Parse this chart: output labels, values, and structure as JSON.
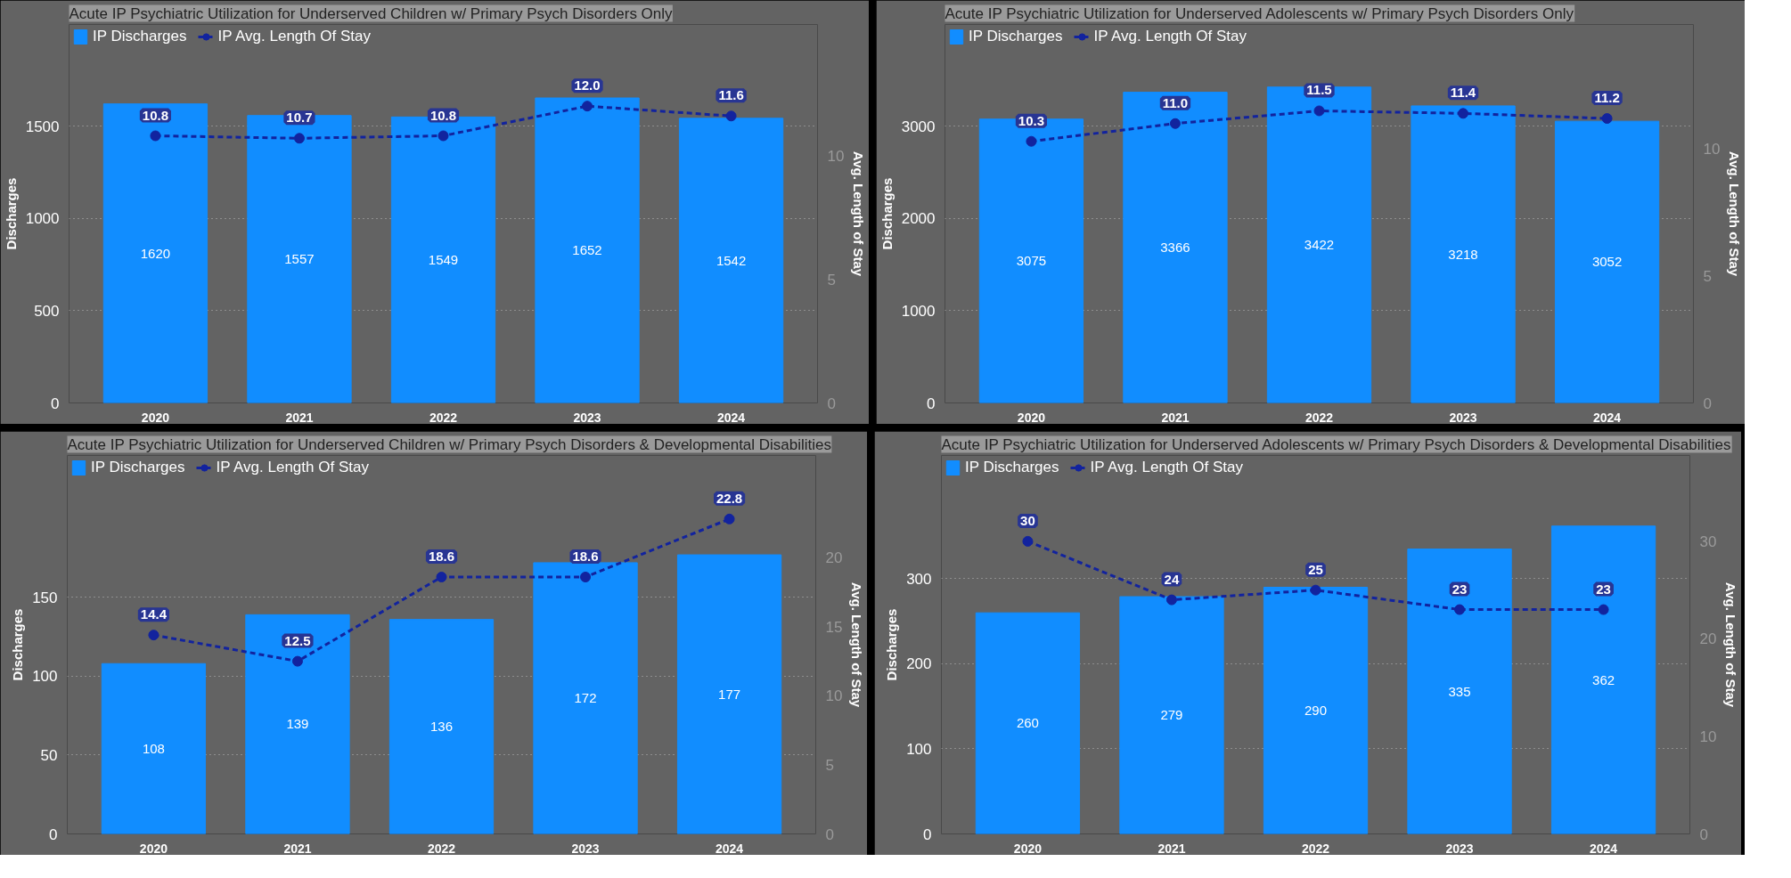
{
  "chart_data": [
    {
      "type": "bar",
      "title": "Acute IP Psychiatric Utilization for Underserved Children w/ Primary Psych Disorders Only",
      "ylabel": "Discharges",
      "y2label": "Avg. Length of Stay",
      "categories": [
        "2020",
        "2021",
        "2022",
        "2023",
        "2024"
      ],
      "series": [
        {
          "name": "IP Discharges",
          "type": "bar",
          "color": "#118dff",
          "values": [
            1620,
            1557,
            1549,
            1652,
            1542
          ]
        },
        {
          "name": "IP Avg. Length Of Stay",
          "type": "line",
          "axis": "y2",
          "color": "#12239e",
          "line_style": "dashed",
          "marker": "circle",
          "values": [
            10.8,
            10.7,
            10.8,
            12.0,
            11.6
          ],
          "value_labels": [
            "10.8",
            "10.7",
            "10.8",
            "12.0",
            "11.6"
          ]
        }
      ],
      "ylim": [
        0,
        2050
      ],
      "yticks": [
        0,
        500,
        1000,
        1500
      ],
      "y2lim": [
        0,
        15.3
      ],
      "y2ticks": [
        0,
        5,
        10
      ],
      "grid": "y",
      "legend": "top left",
      "data_labels": true
    },
    {
      "type": "bar",
      "title": "Acute IP Psychiatric Utilization for Underserved Adolescents w/ Primary Psych Disorders Only",
      "ylabel": "Discharges",
      "y2label": "Avg. Length of Stay",
      "categories": [
        "2020",
        "2021",
        "2022",
        "2023",
        "2024"
      ],
      "series": [
        {
          "name": "IP Discharges",
          "type": "bar",
          "color": "#118dff",
          "values": [
            3075,
            3366,
            3422,
            3218,
            3052
          ]
        },
        {
          "name": "IP Avg. Length Of Stay",
          "type": "line",
          "axis": "y2",
          "color": "#12239e",
          "line_style": "dashed",
          "marker": "circle",
          "values": [
            10.3,
            11.0,
            11.5,
            11.4,
            11.2
          ],
          "value_labels": [
            "10.3",
            "11.0",
            "11.5",
            "11.4",
            "11.2"
          ]
        }
      ],
      "ylim": [
        0,
        4100
      ],
      "yticks": [
        0,
        1000,
        2000,
        3000
      ],
      "y2lim": [
        0,
        14.9
      ],
      "y2ticks": [
        0,
        5,
        10
      ],
      "grid": "y",
      "legend": "top left",
      "data_labels": true
    },
    {
      "type": "bar",
      "title": "Acute IP Psychiatric Utilization for Underserved Children w/ Primary Psych Disorders & Developmental Disabilities",
      "ylabel": "Discharges",
      "y2label": "Avg. Length of Stay",
      "categories": [
        "2020",
        "2021",
        "2022",
        "2023",
        "2024"
      ],
      "series": [
        {
          "name": "IP Discharges",
          "type": "bar",
          "color": "#118dff",
          "values": [
            108,
            139,
            136,
            172,
            177
          ]
        },
        {
          "name": "IP Avg. Length Of Stay",
          "type": "line",
          "axis": "y2",
          "color": "#12239e",
          "line_style": "dashed",
          "marker": "circle",
          "values": [
            14.4,
            12.5,
            18.6,
            18.6,
            22.8
          ]
        }
      ],
      "ylim": [
        0,
        240
      ],
      "yticks": [
        0,
        50,
        100,
        150
      ],
      "y2lim": [
        0,
        27.4
      ],
      "y2ticks": [
        0,
        5,
        10,
        15,
        20
      ],
      "grid": "y",
      "legend": "top left",
      "data_labels": true
    },
    {
      "type": "bar",
      "title": "Acute IP Psychiatric Utilization for Underserved Adolescents w/ Primary Psych Disorders & Developmental Disabilities",
      "ylabel": "Discharges",
      "y2label": "Avg. Length of Stay",
      "categories": [
        "2020",
        "2021",
        "2022",
        "2023",
        "2024"
      ],
      "series": [
        {
          "name": "IP Discharges",
          "type": "bar",
          "color": "#118dff",
          "values": [
            260,
            279,
            290,
            335,
            362
          ]
        },
        {
          "name": "IP Avg. Length Of Stay",
          "type": "line",
          "axis": "y2",
          "color": "#12239e",
          "line_style": "dashed",
          "marker": "circle",
          "values": [
            30,
            24,
            25,
            23,
            23
          ]
        }
      ],
      "ylim": [
        0,
        445
      ],
      "yticks": [
        0,
        100,
        200,
        300
      ],
      "y2lim": [
        0,
        38.8
      ],
      "y2ticks": [
        0,
        10,
        20,
        30
      ],
      "grid": "y",
      "legend": "top left",
      "data_labels": true
    }
  ]
}
